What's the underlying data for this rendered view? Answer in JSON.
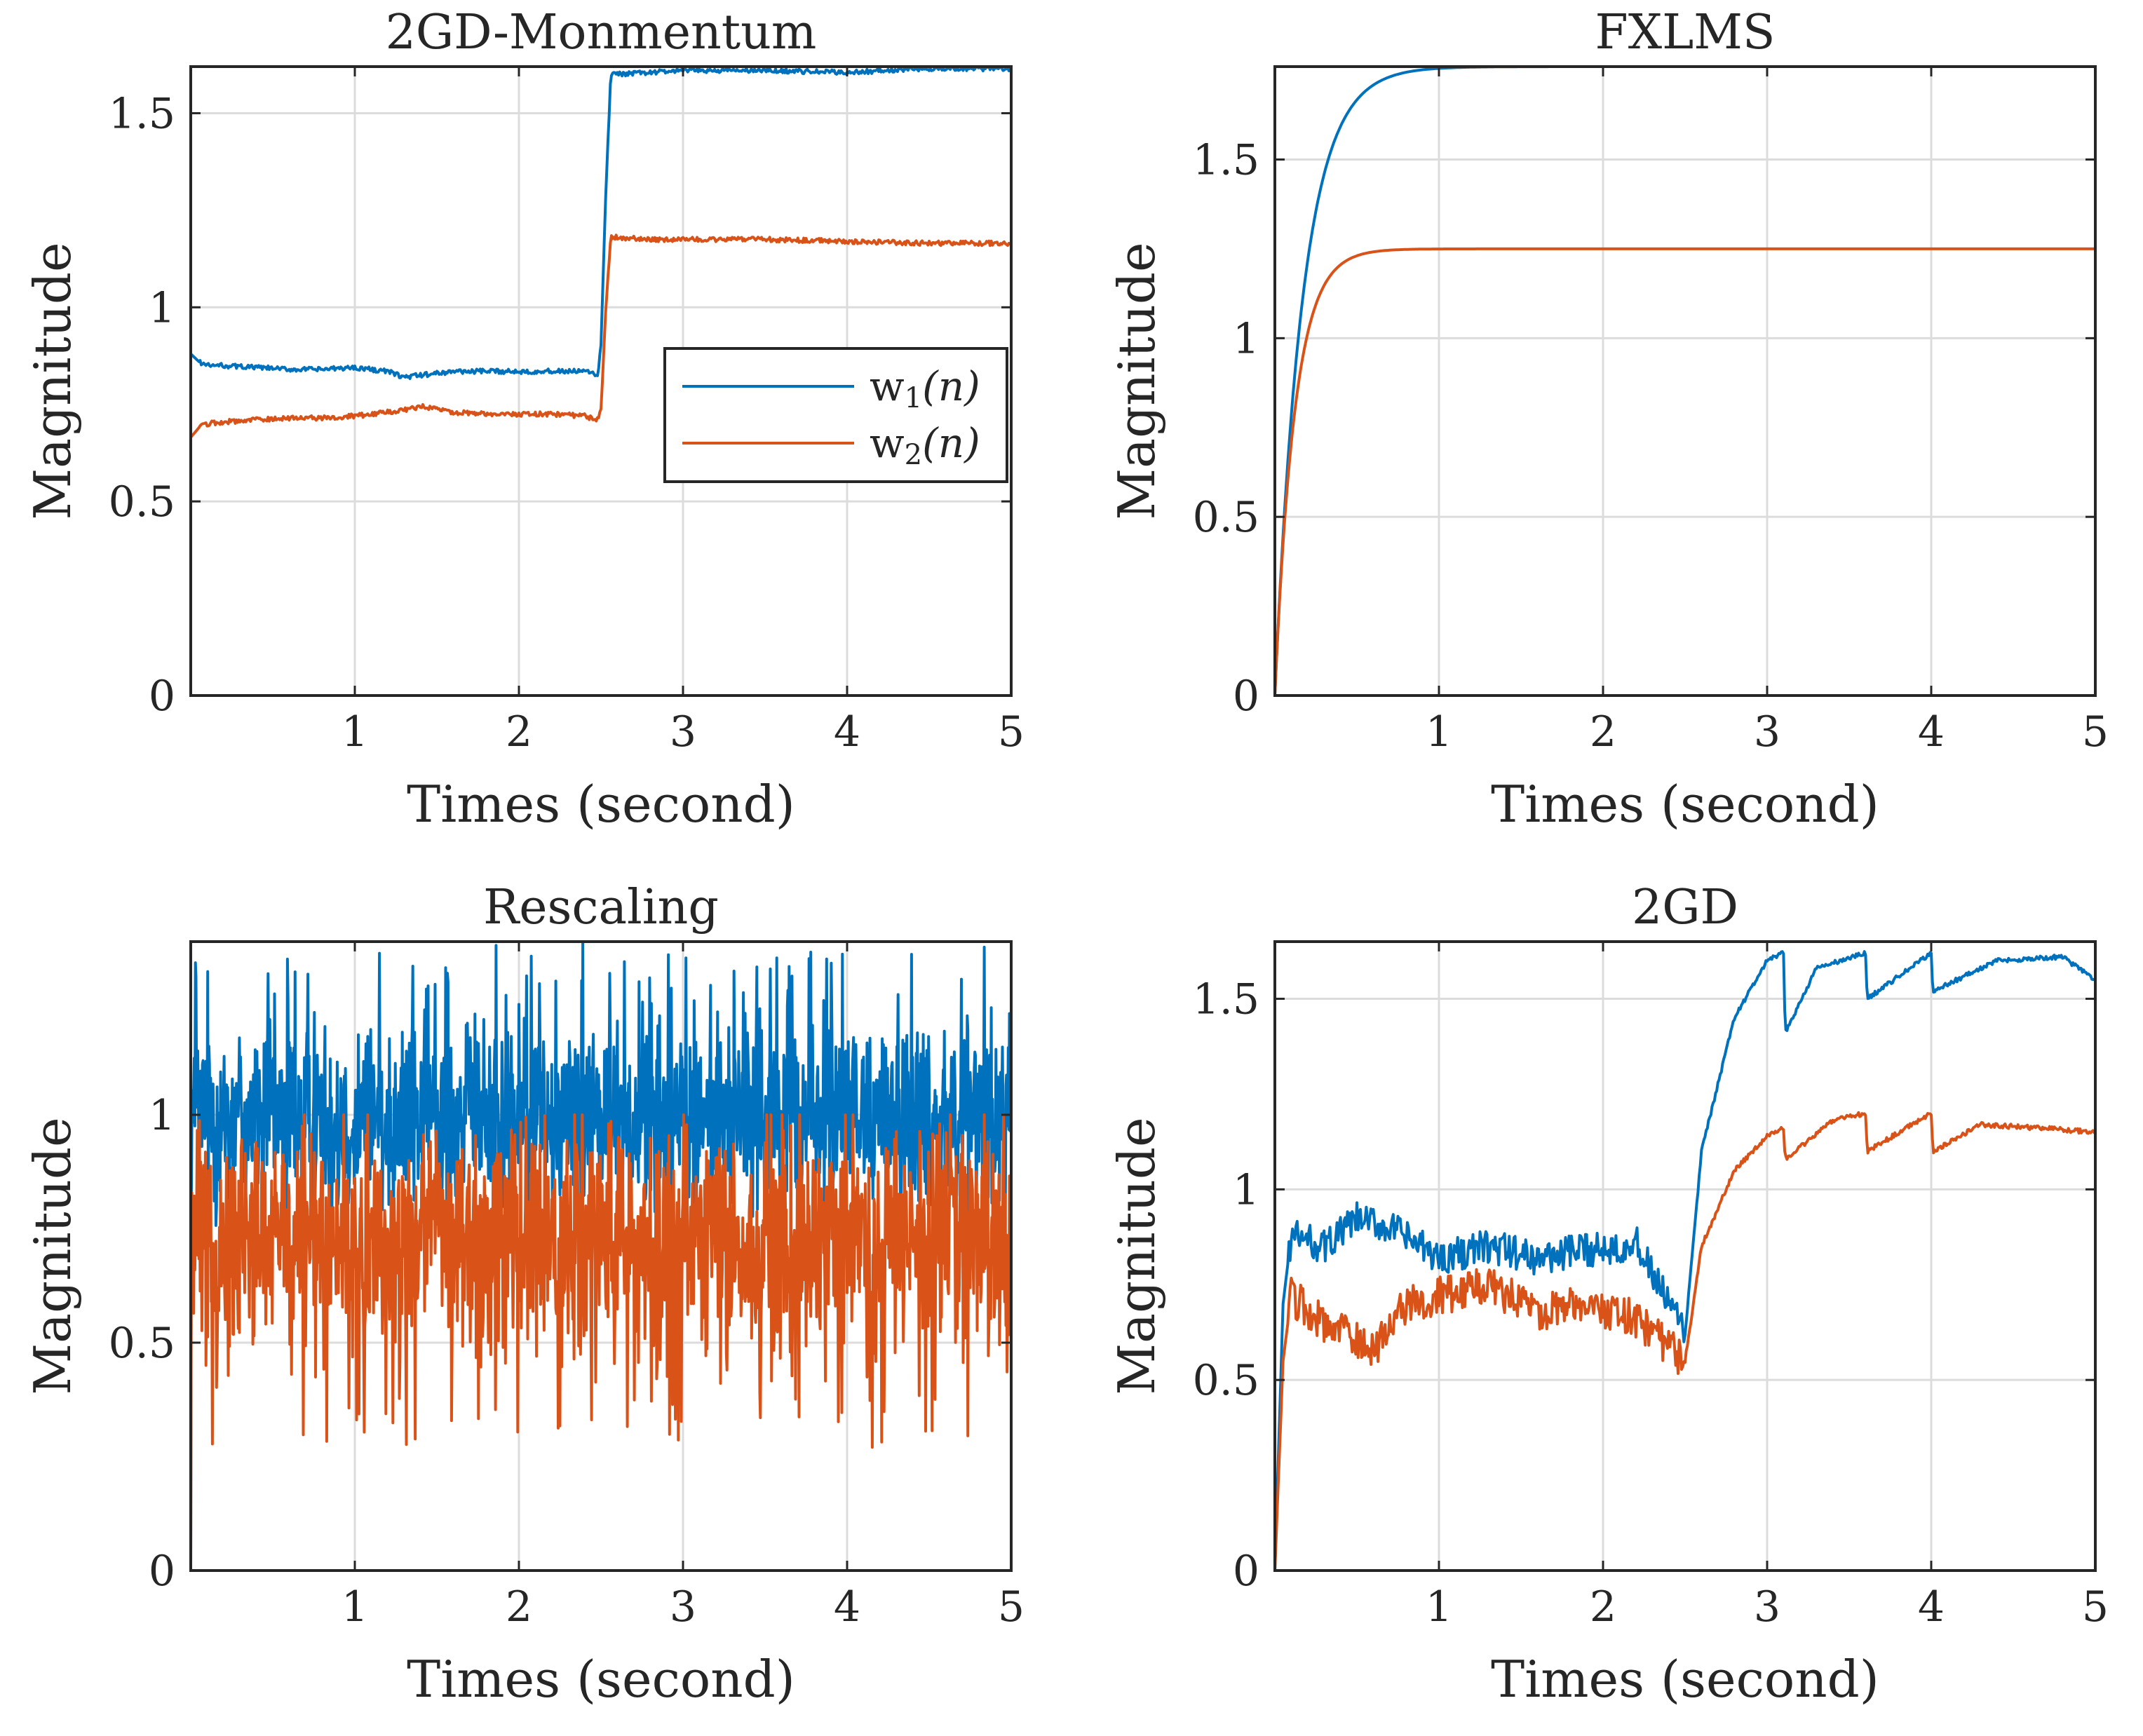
{
  "colors": {
    "w1": "#0072BD",
    "w2": "#D95319",
    "axis": "#262626",
    "grid": "#dcdcdc"
  },
  "legend": {
    "w1": {
      "base": "w",
      "sub": "1",
      "arg": "(n)"
    },
    "w2": {
      "base": "w",
      "sub": "2",
      "arg": "(n)"
    }
  },
  "chart_data": [
    {
      "id": "tl",
      "type": "line",
      "title": "2GD-Monmentum",
      "xlabel": "Times (second)",
      "ylabel": "Magnitude",
      "xlim": [
        0,
        5
      ],
      "ylim": [
        0,
        1.62
      ],
      "xticks": [
        1,
        2,
        3,
        4,
        5
      ],
      "xtick_labels": [
        "1",
        "2",
        "3",
        "4",
        "5"
      ],
      "yticks": [
        0,
        0.5,
        1,
        1.5
      ],
      "ytick_labels": [
        "0",
        "0.5",
        "1",
        "1.5"
      ],
      "grid": true,
      "legend_position": "middle-right",
      "series": [
        {
          "name": "w1(n)",
          "x": [
            0,
            0.05,
            0.1,
            0.2,
            0.4,
            0.6,
            0.8,
            1.0,
            1.2,
            1.3,
            1.4,
            1.6,
            1.8,
            2.0,
            2.2,
            2.4,
            2.48,
            2.5,
            2.53,
            2.56,
            2.6,
            2.8,
            3.0,
            3.5,
            4.0,
            4.5,
            5.0
          ],
          "y": [
            0.88,
            0.86,
            0.85,
            0.85,
            0.845,
            0.84,
            0.84,
            0.845,
            0.835,
            0.82,
            0.825,
            0.835,
            0.835,
            0.835,
            0.835,
            0.835,
            0.825,
            0.9,
            1.3,
            1.6,
            1.6,
            1.605,
            1.61,
            1.61,
            1.605,
            1.615,
            1.615
          ]
        },
        {
          "name": "w2(n)",
          "x": [
            0,
            0.05,
            0.1,
            0.2,
            0.4,
            0.6,
            0.8,
            1.0,
            1.2,
            1.3,
            1.4,
            1.6,
            1.8,
            2.0,
            2.2,
            2.4,
            2.48,
            2.5,
            2.53,
            2.56,
            2.6,
            2.8,
            3.0,
            3.5,
            4.0,
            4.5,
            5.0
          ],
          "y": [
            0.665,
            0.69,
            0.7,
            0.705,
            0.71,
            0.715,
            0.715,
            0.72,
            0.73,
            0.735,
            0.745,
            0.73,
            0.725,
            0.725,
            0.725,
            0.72,
            0.71,
            0.74,
            1.0,
            1.18,
            1.18,
            1.175,
            1.175,
            1.175,
            1.17,
            1.165,
            1.165
          ]
        }
      ]
    },
    {
      "id": "tr",
      "type": "line",
      "title": "FXLMS",
      "xlabel": "Times (second)",
      "ylabel": "Magnitude",
      "xlim": [
        0,
        5
      ],
      "ylim": [
        0,
        1.76
      ],
      "xticks": [
        1,
        2,
        3,
        4,
        5
      ],
      "xtick_labels": [
        "1",
        "2",
        "3",
        "4",
        "5"
      ],
      "yticks": [
        0,
        0.5,
        1,
        1.5
      ],
      "ytick_labels": [
        "0",
        "0.5",
        "1",
        "1.5"
      ],
      "grid": true,
      "series": [
        {
          "name": "w1(n)",
          "model": "first-order rise",
          "final": 1.76,
          "tau": 0.17
        },
        {
          "name": "w2(n)",
          "model": "first-order rise",
          "final": 1.25,
          "tau": 0.12
        }
      ]
    },
    {
      "id": "bl",
      "type": "line",
      "title": "Rescaling",
      "xlabel": "Times (second)",
      "ylabel": "Magnitude",
      "xlim": [
        0,
        5
      ],
      "ylim": [
        0,
        1.38
      ],
      "xticks": [
        1,
        2,
        3,
        4,
        5
      ],
      "xtick_labels": [
        "1",
        "2",
        "3",
        "4",
        "5"
      ],
      "yticks": [
        0,
        0.5,
        1
      ],
      "ytick_labels": [
        "0",
        "0.5",
        "1"
      ],
      "grid": true,
      "series": [
        {
          "name": "w1(n)",
          "model": "noise band",
          "mean": 1.0,
          "range": [
            0.75,
            1.38
          ]
        },
        {
          "name": "w2(n)",
          "model": "noise band",
          "mean": 0.72,
          "range": [
            0.27,
            1.0
          ]
        }
      ]
    },
    {
      "id": "br",
      "type": "line",
      "title": "2GD",
      "xlabel": "Times (second)",
      "ylabel": "Magnitude",
      "xlim": [
        0,
        5
      ],
      "ylim": [
        0,
        1.65
      ],
      "xticks": [
        1,
        2,
        3,
        4,
        5
      ],
      "xtick_labels": [
        "1",
        "2",
        "3",
        "4",
        "5"
      ],
      "yticks": [
        0,
        0.5,
        1,
        1.5
      ],
      "ytick_labels": [
        "0",
        "0.5",
        "1",
        "1.5"
      ],
      "grid": true,
      "series": [
        {
          "name": "w1(n)",
          "x": [
            0,
            0.05,
            0.1,
            0.3,
            0.5,
            0.7,
            1.0,
            1.3,
            1.6,
            1.9,
            2.2,
            2.5,
            2.6,
            2.8,
            3.0,
            3.1,
            3.11,
            3.3,
            3.6,
            3.61,
            4.0,
            4.01,
            4.4,
            4.8,
            5.0
          ],
          "y": [
            0,
            0.7,
            0.88,
            0.85,
            0.92,
            0.9,
            0.82,
            0.85,
            0.82,
            0.84,
            0.86,
            0.62,
            1.1,
            1.45,
            1.6,
            1.62,
            1.41,
            1.58,
            1.62,
            1.5,
            1.62,
            1.52,
            1.6,
            1.61,
            1.55
          ]
        },
        {
          "name": "w2(n)",
          "x": [
            0,
            0.05,
            0.1,
            0.3,
            0.6,
            0.8,
            1.0,
            1.3,
            1.6,
            1.9,
            2.2,
            2.5,
            2.6,
            2.8,
            3.0,
            3.1,
            3.11,
            3.4,
            3.6,
            3.61,
            4.0,
            4.01,
            4.3,
            4.7,
            5.0
          ],
          "y": [
            0,
            0.55,
            0.72,
            0.65,
            0.58,
            0.7,
            0.72,
            0.75,
            0.68,
            0.7,
            0.66,
            0.55,
            0.85,
            1.05,
            1.14,
            1.16,
            1.08,
            1.18,
            1.2,
            1.1,
            1.2,
            1.1,
            1.17,
            1.16,
            1.15
          ]
        }
      ]
    }
  ]
}
